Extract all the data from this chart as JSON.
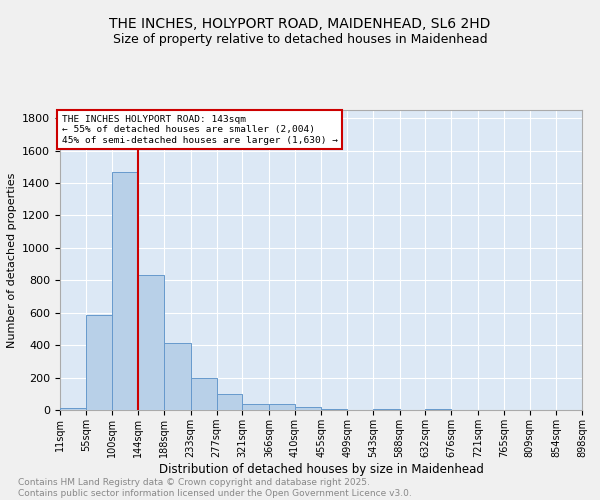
{
  "title": "THE INCHES, HOLYPORT ROAD, MAIDENHEAD, SL6 2HD",
  "subtitle": "Size of property relative to detached houses in Maidenhead",
  "xlabel": "Distribution of detached houses by size in Maidenhead",
  "ylabel": "Number of detached properties",
  "background_color": "#dce8f5",
  "bar_color": "#b8d0e8",
  "bar_edge_color": "#6699cc",
  "grid_color": "#ffffff",
  "fig_background": "#f0f0f0",
  "vline_color": "#cc0000",
  "vline_x": 144,
  "annotation_text": "THE INCHES HOLYPORT ROAD: 143sqm\n← 55% of detached houses are smaller (2,004)\n45% of semi-detached houses are larger (1,630) →",
  "annotation_box_color": "#ffffff",
  "annotation_box_edge": "#cc0000",
  "footer_text": "Contains HM Land Registry data © Crown copyright and database right 2025.\nContains public sector information licensed under the Open Government Licence v3.0.",
  "bin_edges": [
    11,
    55,
    100,
    144,
    188,
    233,
    277,
    321,
    366,
    410,
    455,
    499,
    543,
    588,
    632,
    676,
    721,
    765,
    809,
    854,
    898
  ],
  "bin_values": [
    15,
    585,
    1470,
    830,
    415,
    200,
    100,
    40,
    35,
    20,
    5,
    0,
    5,
    0,
    5,
    0,
    0,
    0,
    0,
    0
  ],
  "tick_labels": [
    "11sqm",
    "55sqm",
    "100sqm",
    "144sqm",
    "188sqm",
    "233sqm",
    "277sqm",
    "321sqm",
    "366sqm",
    "410sqm",
    "455sqm",
    "499sqm",
    "543sqm",
    "588sqm",
    "632sqm",
    "676sqm",
    "721sqm",
    "765sqm",
    "809sqm",
    "854sqm",
    "898sqm"
  ],
  "ylim": [
    0,
    1850
  ],
  "yticks": [
    0,
    200,
    400,
    600,
    800,
    1000,
    1200,
    1400,
    1600,
    1800
  ],
  "title_fontsize": 10,
  "subtitle_fontsize": 9,
  "axis_label_fontsize": 8,
  "tick_fontsize": 7,
  "ytick_fontsize": 8,
  "footer_fontsize": 6.5,
  "footer_color": "#888888"
}
